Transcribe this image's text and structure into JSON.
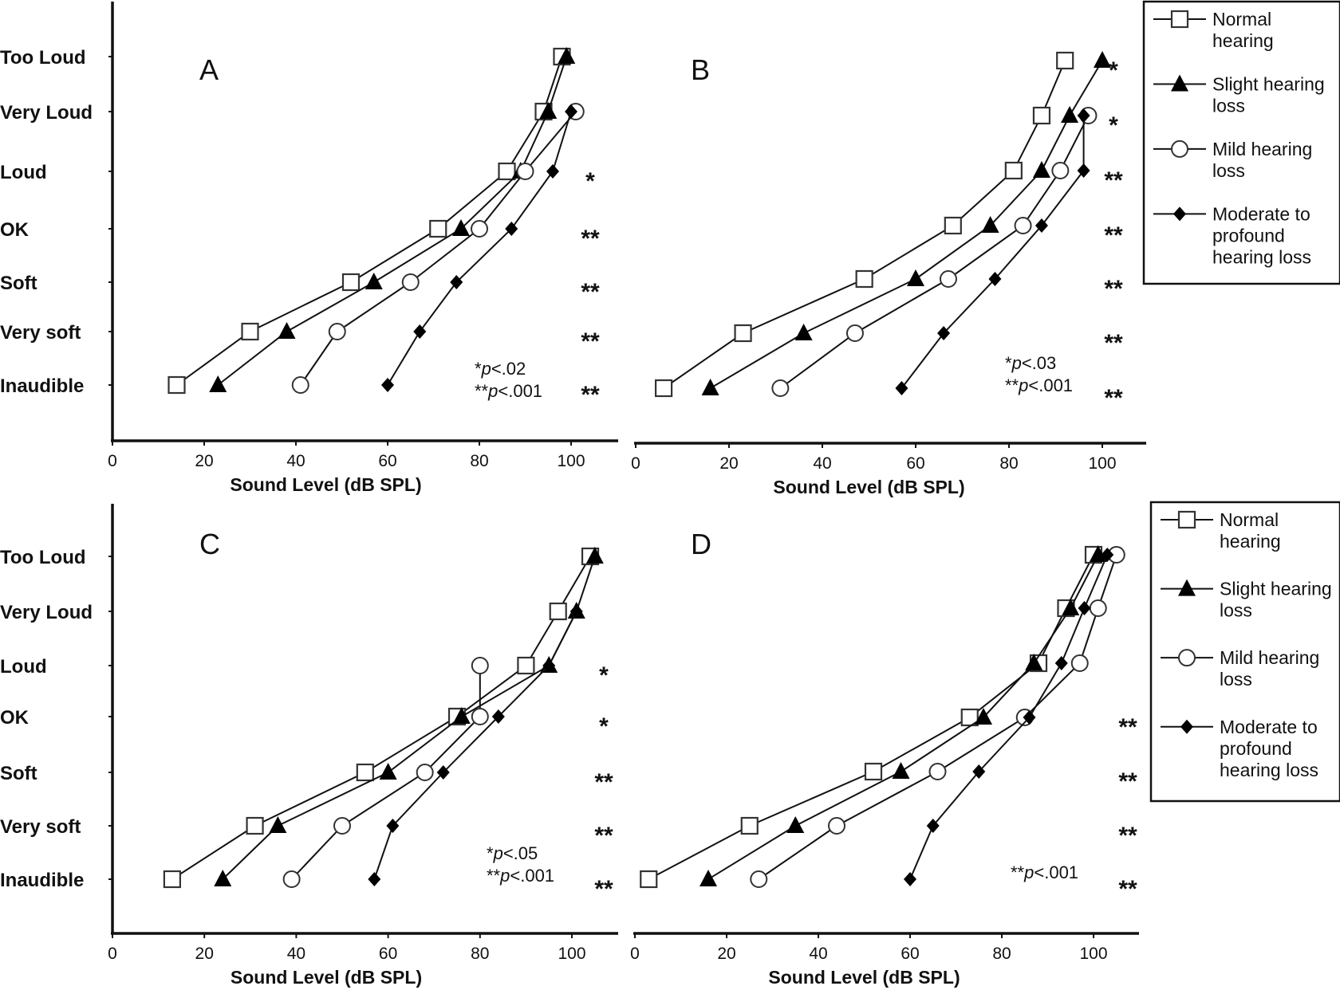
{
  "chart_data": [
    {
      "type": "line",
      "panel_label": "A",
      "xlabel": "Sound Level (dB SPL)",
      "xlim": [
        0,
        110
      ],
      "xticks": [
        0,
        20,
        40,
        60,
        80,
        100
      ],
      "categories": [
        "Inaudible",
        "Very soft",
        "Soft",
        "OK",
        "Loud",
        "Very Loud",
        "Too Loud"
      ],
      "series": [
        {
          "name": "Normal hearing",
          "marker": "square-open",
          "x": [
            14,
            30,
            52,
            71,
            86,
            94,
            98
          ]
        },
        {
          "name": "Slight hearing loss",
          "marker": "triangle-filled",
          "x": [
            23,
            38,
            57,
            76,
            89,
            95,
            99
          ]
        },
        {
          "name": "Mild hearing loss",
          "marker": "circle-open",
          "x": [
            41,
            49,
            65,
            80,
            90,
            101,
            null
          ]
        },
        {
          "name": "Moderate to profound hearing loss",
          "marker": "diamond-filled",
          "x": [
            60,
            67,
            75,
            87,
            96,
            100,
            null
          ]
        }
      ],
      "significance": [
        "**",
        "**",
        "**",
        "**",
        "*",
        "",
        ""
      ],
      "note": [
        "*p<.02",
        "**p<.001"
      ]
    },
    {
      "type": "line",
      "panel_label": "B",
      "xlabel": "Sound Level (dB SPL)",
      "xlim": [
        0,
        110
      ],
      "xticks": [
        0,
        20,
        40,
        60,
        80,
        100
      ],
      "categories": [
        "Inaudible",
        "Very soft",
        "Soft",
        "OK",
        "Loud",
        "Very Loud",
        "Too Loud"
      ],
      "series": [
        {
          "name": "Normal hearing",
          "marker": "square-open",
          "x": [
            6,
            23,
            49,
            68,
            81,
            87,
            92
          ]
        },
        {
          "name": "Slight hearing loss",
          "marker": "triangle-filled",
          "x": [
            16,
            36,
            60,
            76,
            87,
            93,
            100
          ]
        },
        {
          "name": "Mild hearing loss",
          "marker": "circle-open",
          "x": [
            31,
            47,
            67,
            83,
            91,
            97,
            null
          ]
        },
        {
          "name": "Moderate to profound hearing loss",
          "marker": "diamond-filled",
          "x": [
            57,
            66,
            77,
            87,
            96,
            96,
            null
          ]
        }
      ],
      "significance": [
        "**",
        "**",
        "**",
        "**",
        "**",
        "*",
        "*"
      ],
      "note": [
        "*p<.03",
        "**p<.001"
      ]
    },
    {
      "type": "line",
      "panel_label": "C",
      "xlabel": "Sound Level (dB SPL)",
      "xlim": [
        0,
        110
      ],
      "xticks": [
        0,
        20,
        40,
        60,
        80,
        100
      ],
      "categories": [
        "Inaudible",
        "Very soft",
        "Soft",
        "OK",
        "Loud",
        "Very Loud",
        "Too Loud"
      ],
      "series": [
        {
          "name": "Normal hearing",
          "marker": "square-open",
          "x": [
            13,
            31,
            55,
            75,
            90,
            97,
            104
          ]
        },
        {
          "name": "Slight hearing loss",
          "marker": "triangle-filled",
          "x": [
            24,
            36,
            60,
            76,
            95,
            101,
            105
          ]
        },
        {
          "name": "Mild hearing loss",
          "marker": "circle-open",
          "x": [
            39,
            50,
            68,
            80,
            80,
            null,
            null
          ]
        },
        {
          "name": "Moderate to profound hearing loss",
          "marker": "diamond-filled",
          "x": [
            57,
            61,
            72,
            84,
            95,
            101,
            null
          ]
        }
      ],
      "significance": [
        "**",
        "**",
        "**",
        "*",
        "*",
        "",
        ""
      ],
      "note": [
        "*p<.05",
        "**p<.001"
      ]
    },
    {
      "type": "line",
      "panel_label": "D",
      "xlabel": "Sound Level (dB SPL)",
      "xlim": [
        0,
        110
      ],
      "xticks": [
        0,
        20,
        40,
        60,
        80,
        100
      ],
      "categories": [
        "Inaudible",
        "Very soft",
        "Soft",
        "OK",
        "Loud",
        "Very Loud",
        "Too Loud"
      ],
      "series": [
        {
          "name": "Normal hearing",
          "marker": "square-open",
          "x": [
            3,
            25,
            52,
            73,
            88,
            94,
            100
          ]
        },
        {
          "name": "Slight hearing loss",
          "marker": "triangle-filled",
          "x": [
            16,
            35,
            58,
            76,
            87,
            95,
            101
          ]
        },
        {
          "name": "Mild hearing loss",
          "marker": "circle-open",
          "x": [
            27,
            44,
            66,
            85,
            97,
            101,
            105
          ]
        },
        {
          "name": "Moderate to profound hearing loss",
          "marker": "diamond-filled",
          "x": [
            60,
            65,
            75,
            86,
            93,
            98,
            103
          ]
        }
      ],
      "significance": [
        "**",
        "**",
        "**",
        "**",
        "",
        "",
        ""
      ],
      "note": [
        "**p<.001"
      ]
    }
  ]
}
